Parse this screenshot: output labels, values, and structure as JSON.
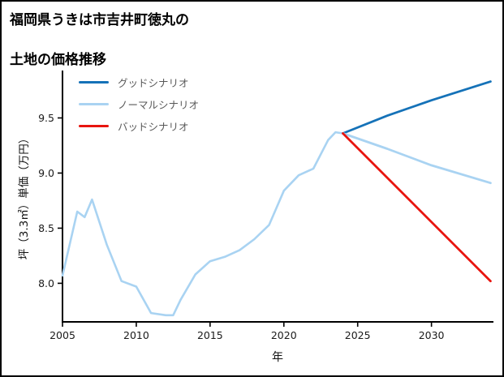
{
  "page": {
    "title_line1": "福岡県うきは市吉井町徳丸の",
    "title_line2": "土地の価格推移"
  },
  "chart_data": {
    "type": "line",
    "title": "福岡県うきは市吉井町徳丸の土地の価格推移",
    "xlabel": "年",
    "ylabel": "坪（3.3㎡）単価（万円）",
    "xlim": [
      2005,
      2034.2
    ],
    "ylim": [
      7.65,
      9.93
    ],
    "grid": false,
    "legend_position": "upper-left",
    "xticks": {
      "values": [
        2005,
        2010,
        2015,
        2020,
        2025,
        2030
      ],
      "labels": [
        "2005",
        "2010",
        "2015",
        "2020",
        "2025",
        "2030"
      ]
    },
    "yticks": {
      "values": [
        8.0,
        8.5,
        9.0,
        9.5
      ],
      "labels": [
        "8.0",
        "8.5",
        "9.0",
        "9.5"
      ]
    },
    "series": [
      {
        "id": "historical",
        "name": "",
        "in_legend": false,
        "color": "#a9d3f2",
        "width": 2.6,
        "x": [
          2005,
          2006,
          2006.5,
          2007,
          2008,
          2009,
          2010,
          2011,
          2012,
          2012.5,
          2013,
          2014,
          2015,
          2016,
          2017,
          2018,
          2019,
          2020,
          2021,
          2022,
          2023,
          2023.5,
          2024
        ],
        "y": [
          8.07,
          8.65,
          8.6,
          8.76,
          8.35,
          8.02,
          7.97,
          7.73,
          7.71,
          7.71,
          7.85,
          8.08,
          8.2,
          8.24,
          8.3,
          8.4,
          8.53,
          8.84,
          8.98,
          9.04,
          9.3,
          9.37,
          9.36
        ]
      },
      {
        "id": "good-scenario",
        "name": "グッドシナリオ",
        "in_legend": true,
        "color": "#1572b8",
        "width": 2.8,
        "x": [
          2024,
          2027,
          2030,
          2034
        ],
        "y": [
          9.36,
          9.52,
          9.66,
          9.83
        ]
      },
      {
        "id": "normal-scenario",
        "name": "ノーマルシナリオ",
        "in_legend": true,
        "color": "#a9d3f2",
        "width": 2.8,
        "x": [
          2024,
          2027,
          2030,
          2034
        ],
        "y": [
          9.36,
          9.22,
          9.07,
          8.91
        ]
      },
      {
        "id": "bad-scenario",
        "name": "バッドシナリオ",
        "in_legend": true,
        "color": "#e8150f",
        "width": 2.8,
        "x": [
          2024,
          2034
        ],
        "y": [
          9.36,
          8.02
        ]
      }
    ]
  }
}
